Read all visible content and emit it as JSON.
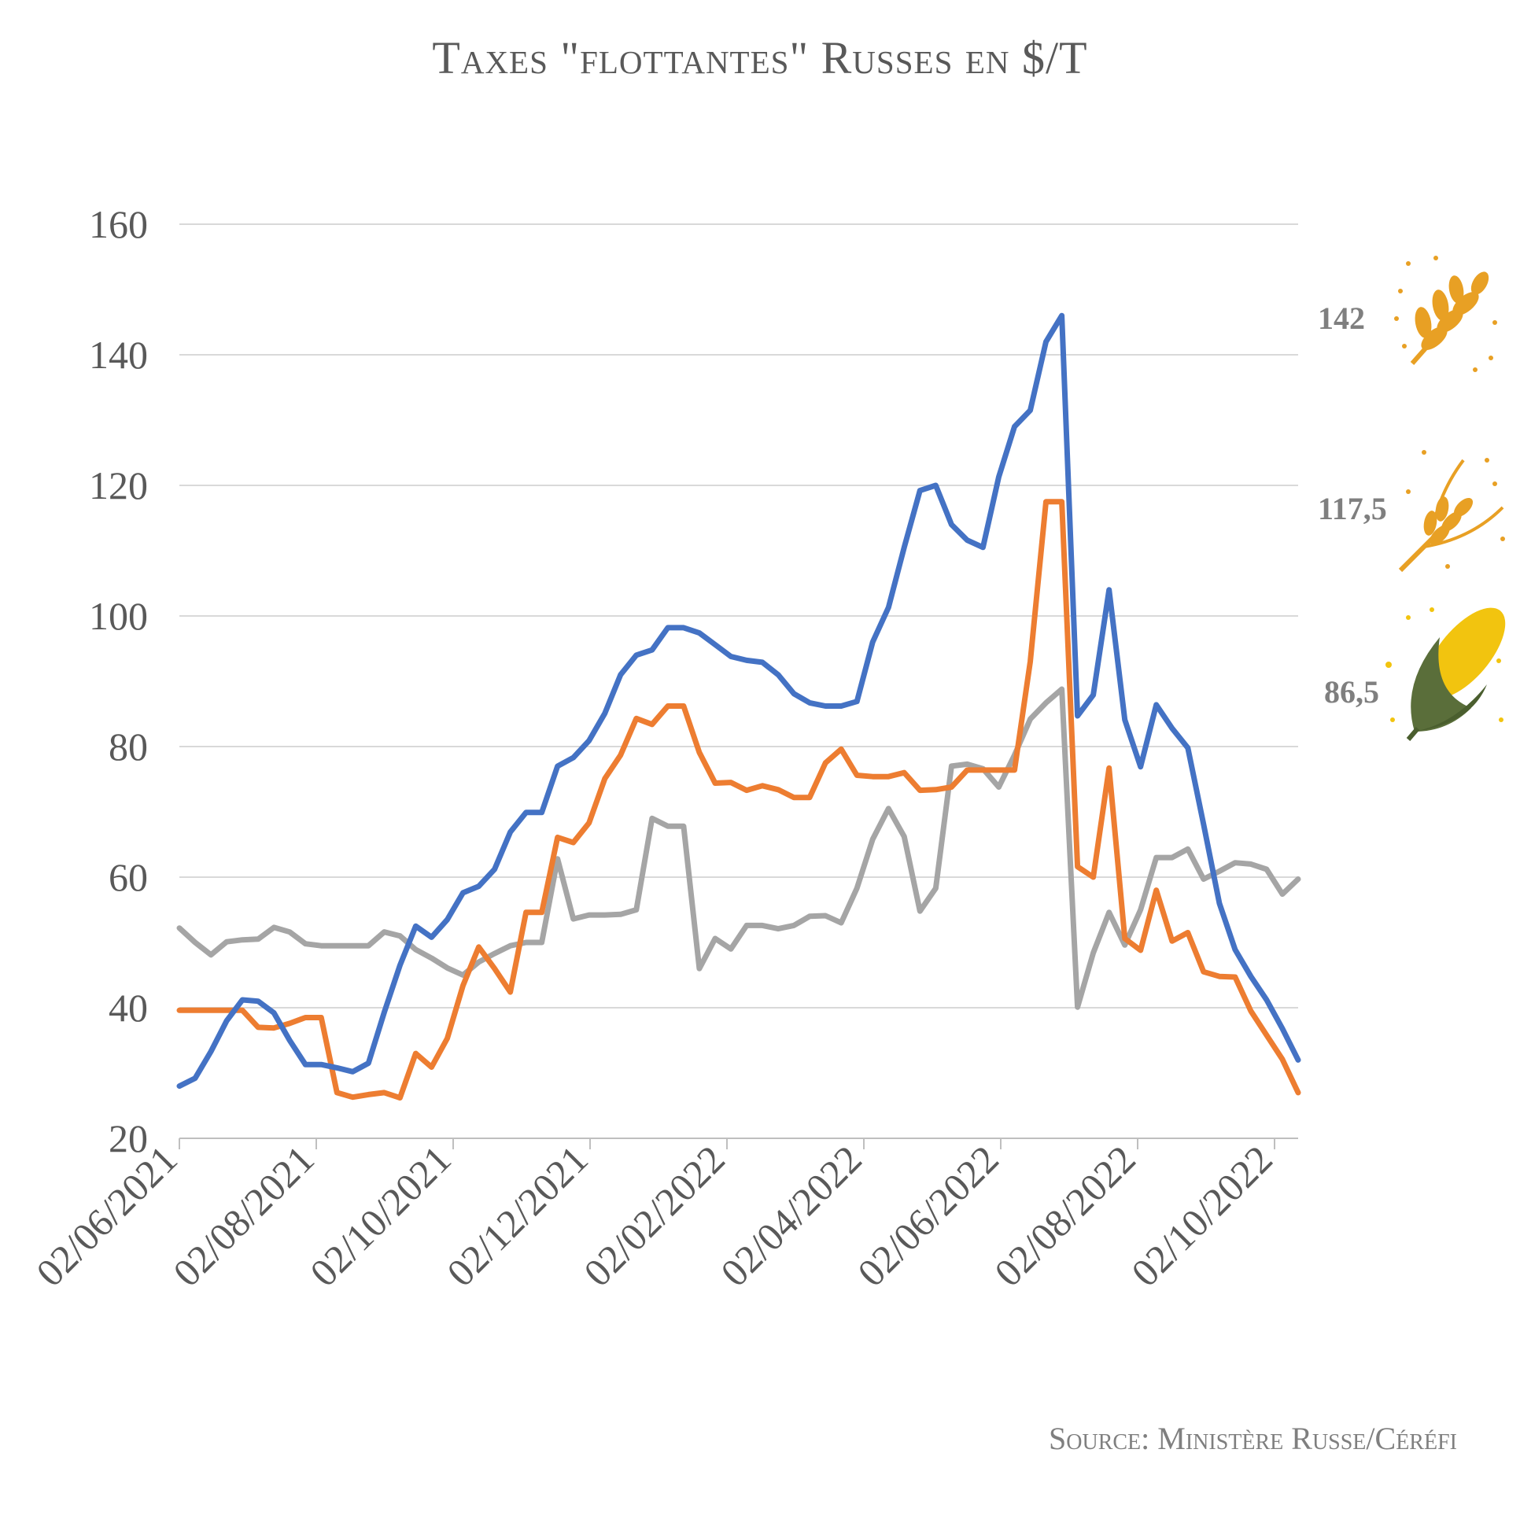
{
  "title": "Taxes \"flottantes\" Russes en $/T",
  "source": "Source: Ministère Russe/Céréfi",
  "icons": [
    "wheat-icon",
    "barley-icon",
    "corn-icon"
  ],
  "chart_data": {
    "type": "line",
    "title": "Taxes \"flottantes\" Russes en $/T",
    "xlabel": "",
    "ylabel": "",
    "ylim": [
      20,
      160
    ],
    "yticks": [
      20,
      40,
      60,
      80,
      100,
      120,
      140,
      160
    ],
    "xticks": [
      "02/06/2021",
      "02/08/2021",
      "02/10/2021",
      "02/12/2021",
      "02/02/2022",
      "02/04/2022",
      "02/06/2022",
      "02/08/2022",
      "02/10/2022"
    ],
    "grid": "horizontal",
    "end_labels": [
      "142",
      "117,5",
      "86,5"
    ],
    "series": [
      {
        "color": "#4472c4",
        "values": [
          28,
          29.2,
          33.3,
          38,
          41.2,
          41,
          39.2,
          35,
          31.3,
          31.3,
          30.8,
          30.2,
          31.5,
          39.3,
          46.5,
          52.5,
          50.8,
          53.5,
          57.6,
          58.6,
          61.2,
          66.9,
          69.9,
          69.9,
          77,
          78.3,
          80.9,
          85.1,
          91,
          94,
          94.8,
          98.2,
          98.2,
          97.4,
          95.6,
          93.8,
          93.2,
          92.9,
          91,
          88.1,
          86.7,
          86.2,
          86.2,
          86.9,
          96,
          101.3,
          110.5,
          119.2,
          120,
          114,
          111.6,
          110.5,
          121.3,
          129,
          131.5,
          142,
          146,
          84.7,
          87.9,
          104,
          84.1,
          76.9,
          86.4,
          82.8,
          79.8,
          68.1,
          56,
          48.9,
          44.8,
          41.2,
          36.8,
          32
        ]
      },
      {
        "color": "#ed7d31",
        "values": [
          39.6,
          39.6,
          39.6,
          39.6,
          39.6,
          37,
          36.9,
          37.6,
          38.5,
          38.5,
          27,
          26.3,
          26.7,
          27,
          26.2,
          33,
          30.9,
          35.3,
          43.4,
          49.3,
          46,
          42.4,
          54.6,
          54.6,
          66.1,
          65.3,
          68.3,
          75.1,
          78.7,
          84.3,
          83.4,
          86.2,
          86.2,
          79.1,
          74.4,
          74.5,
          73.3,
          74,
          73.4,
          72.2,
          72.2,
          77.5,
          79.6,
          75.6,
          75.4,
          75.4,
          76,
          73.3,
          73.4,
          73.8,
          76.4,
          76.4,
          76.4,
          76.4,
          93,
          117.5,
          117.5,
          61.6,
          60,
          76.7,
          50.6,
          48.8,
          58,
          50.2,
          51.5,
          45.5,
          44.8,
          44.7,
          39.5,
          35.8,
          32.1,
          27
        ]
      },
      {
        "color": "#a5a5a5",
        "values": [
          52.2,
          50,
          48.1,
          50.1,
          50.4,
          50.5,
          52.3,
          51.6,
          49.8,
          49.5,
          49.5,
          49.5,
          49.5,
          51.6,
          51,
          48.9,
          47.6,
          46.1,
          45,
          47,
          48.3,
          49.5,
          50,
          50,
          62.8,
          53.6,
          54.2,
          54.2,
          54.3,
          55,
          69,
          67.8,
          67.8,
          46,
          50.6,
          49,
          52.6,
          52.6,
          52.1,
          52.6,
          54,
          54.1,
          53,
          58.3,
          65.8,
          70.5,
          66.2,
          54.8,
          58.3,
          77,
          77.3,
          76.6,
          73.8,
          78.7,
          84.2,
          86.7,
          88.8,
          40.1,
          48.4,
          54.6,
          49.6,
          55,
          63,
          63,
          64.3,
          59.7,
          60.9,
          62.2,
          62,
          61.2,
          57.4,
          59.7
        ]
      }
    ]
  }
}
